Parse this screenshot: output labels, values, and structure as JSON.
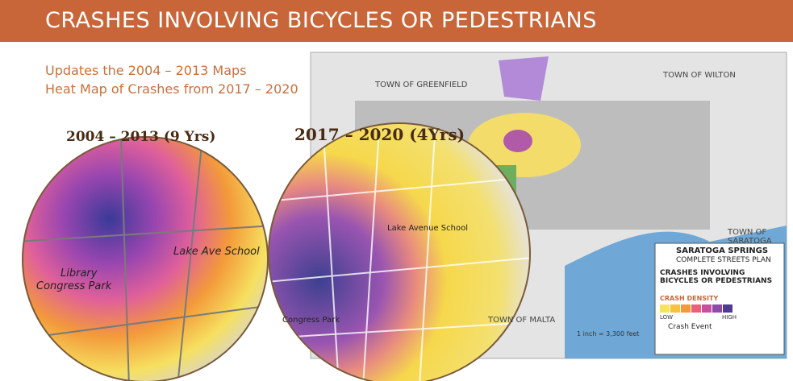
{
  "header": {
    "title": "CRASHES INVOLVING BICYCLES OR PEDESTRIANS"
  },
  "subtitle": [
    "Updates the 2004 – 2013 Maps",
    "Heat Map of Crashes from 2017 – 2020"
  ],
  "maps": [
    {
      "label": "2004 – 2013 (9 Yrs)",
      "places": [
        "Library",
        "Lake Ave School",
        "Congress Park"
      ]
    },
    {
      "label": "2017 – 2020  (4Yrs)",
      "places": [
        "Lake Avenue School",
        "Congress Park"
      ]
    }
  ],
  "overview": {
    "towns": [
      "TOWN OF GREENFIELD",
      "TOWN OF WILTON",
      "TOWN OF SARATOGA",
      "TOWN OF MALTA"
    ],
    "scale": "1 inch = 3,300 feet",
    "legend": {
      "org": "SARATOGA SPRINGS",
      "plan": "COMPLETE STREETS PLAN",
      "title": "CRASHES INVOLVING BICYCLES OR PEDESTRIANS",
      "density": "CRASH DENSITY",
      "low": "LOW",
      "high": "HIGH",
      "event": "Crash Event",
      "colors": [
        "#f7e45a",
        "#f5c242",
        "#f29a3a",
        "#e8607a",
        "#c84f9c",
        "#8d4aa8",
        "#4f3c8f"
      ]
    }
  }
}
